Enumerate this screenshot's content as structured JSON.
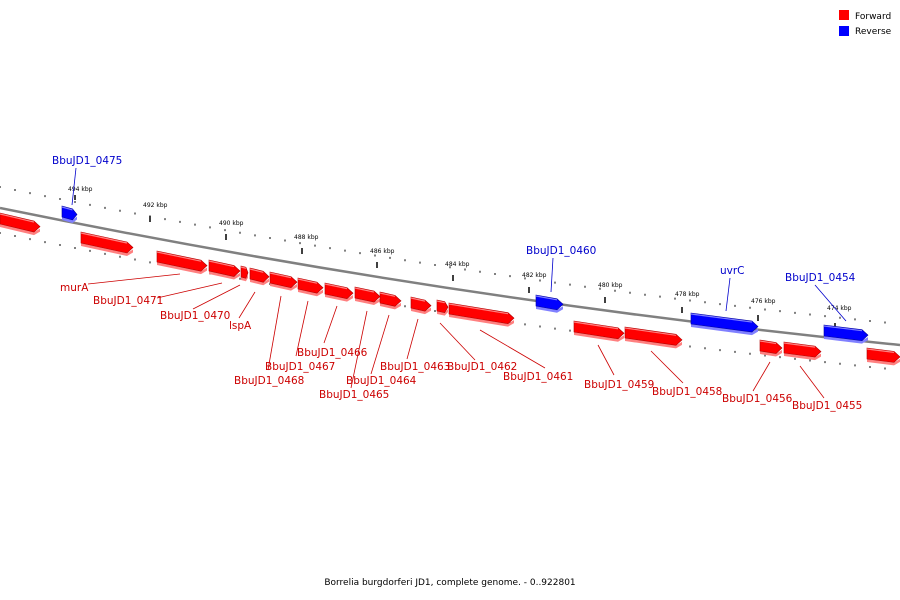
{
  "legend": [
    {
      "label": "Forward",
      "color": "#ff0000"
    },
    {
      "label": "Reverse",
      "color": "#0000ff"
    }
  ],
  "caption": "Borrelia burgdorferi JD1, complete genome. - 0..922801",
  "colors": {
    "forward": "#ff0000",
    "forward_dark": "#b00000",
    "forward_light": "#ff8080",
    "reverse": "#0000ff",
    "reverse_dark": "#0000a0",
    "reverse_light": "#8080ff",
    "forward_label": "#cc0000",
    "reverse_label": "#0000cc",
    "backbone": "#808080"
  },
  "ticks": [
    "494 kbp",
    "492 kbp",
    "490 kbp",
    "488 kbp",
    "486 kbp",
    "484 kbp",
    "482 kbp",
    "480 kbp",
    "478 kbp",
    "476 kbp",
    "474 kbp"
  ],
  "genes": [
    {
      "name": "BbuJD1_0475",
      "strand": "reverse"
    },
    {
      "name": "BbuJD1_0460",
      "strand": "reverse"
    },
    {
      "name": "uvrC",
      "strand": "reverse"
    },
    {
      "name": "BbuJD1_0454",
      "strand": "reverse"
    },
    {
      "name": "murA",
      "strand": "forward"
    },
    {
      "name": "BbuJD1_0471",
      "strand": "forward"
    },
    {
      "name": "BbuJD1_0470",
      "strand": "forward"
    },
    {
      "name": "lspA",
      "strand": "forward"
    },
    {
      "name": "BbuJD1_0468",
      "strand": "forward"
    },
    {
      "name": "BbuJD1_0467",
      "strand": "forward"
    },
    {
      "name": "BbuJD1_0466",
      "strand": "forward"
    },
    {
      "name": "BbuJD1_0465",
      "strand": "forward"
    },
    {
      "name": "BbuJD1_0464",
      "strand": "forward"
    },
    {
      "name": "BbuJD1_0463",
      "strand": "forward"
    },
    {
      "name": "BbuJD1_0462",
      "strand": "forward"
    },
    {
      "name": "BbuJD1_0461",
      "strand": "forward"
    },
    {
      "name": "BbuJD1_0459",
      "strand": "forward"
    },
    {
      "name": "BbuJD1_0458",
      "strand": "forward"
    },
    {
      "name": "BbuJD1_0456",
      "strand": "forward"
    },
    {
      "name": "BbuJD1_0455",
      "strand": "forward"
    }
  ]
}
